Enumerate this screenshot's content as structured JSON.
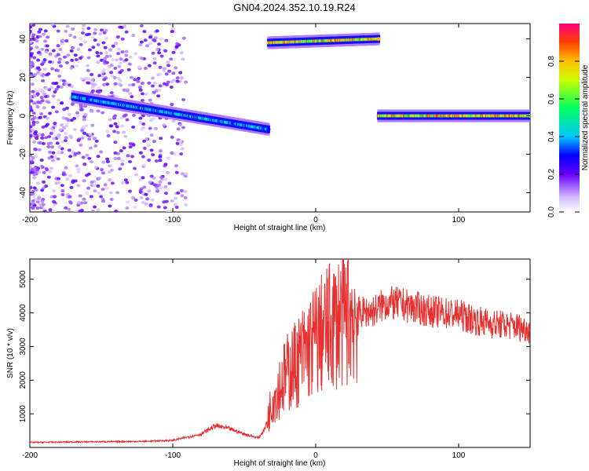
{
  "title": "GN04.2024.352.10.19.R24",
  "chart_data": [
    {
      "type": "heatmap",
      "xlabel": "Height of straight line (km)",
      "ylabel": "Frequency (Hz)",
      "xlim": [
        -200,
        150
      ],
      "ylim": [
        -50,
        48
      ],
      "xticks": [
        "-200",
        "-100",
        "0",
        "100"
      ],
      "xtick_values": [
        -200,
        -100,
        0,
        100
      ],
      "yticks": [
        "-40",
        "-20",
        "0",
        "20",
        "40"
      ],
      "ytick_values": [
        -40,
        -20,
        0,
        20,
        40
      ],
      "colorbar": {
        "label": "Normalized spectral amplitude",
        "range": [
          0,
          1
        ],
        "ticks": [
          "0.0",
          "0.2",
          "0.4",
          "0.6",
          "0.8"
        ],
        "tick_values": [
          0,
          0.2,
          0.4,
          0.6,
          0.8
        ]
      },
      "bands": [
        {
          "x_start": -170,
          "x_end": -33,
          "freq_start": 10,
          "freq_end": -7,
          "peak_amplitude": 0.5
        },
        {
          "x_start": -33,
          "x_end": 44,
          "freq_start": 38,
          "freq_end": 40,
          "peak_amplitude": 0.95
        },
        {
          "x_start": 44,
          "x_end": 150,
          "freq_start": 0,
          "freq_end": 0,
          "peak_amplitude": 0.95
        }
      ]
    },
    {
      "type": "line",
      "xlabel": "Height of straight line (km)",
      "ylabel": "SNR (10 * v/v)",
      "xlim": [
        -200,
        150
      ],
      "ylim": [
        0,
        5600
      ],
      "xticks": [
        "-200",
        "-100",
        "0",
        "100"
      ],
      "xtick_values": [
        -200,
        -100,
        0,
        100
      ],
      "yticks": [
        "1000",
        "2000",
        "3000",
        "4000",
        "5000"
      ],
      "ytick_values": [
        1000,
        2000,
        3000,
        4000,
        5000
      ],
      "line_color": "#e83030",
      "x": [
        -200,
        -150,
        -120,
        -100,
        -80,
        -70,
        -60,
        -50,
        -40,
        -35,
        -30,
        -20,
        -10,
        0,
        10,
        20,
        30,
        40,
        50,
        60,
        70,
        80,
        90,
        100,
        110,
        120,
        130,
        140,
        150
      ],
      "y": [
        150,
        170,
        180,
        210,
        400,
        650,
        550,
        400,
        280,
        600,
        1500,
        2200,
        2700,
        3200,
        3600,
        3900,
        4000,
        4050,
        4300,
        4250,
        4150,
        4050,
        4000,
        3950,
        3800,
        3700,
        3650,
        3600,
        3500
      ]
    }
  ]
}
